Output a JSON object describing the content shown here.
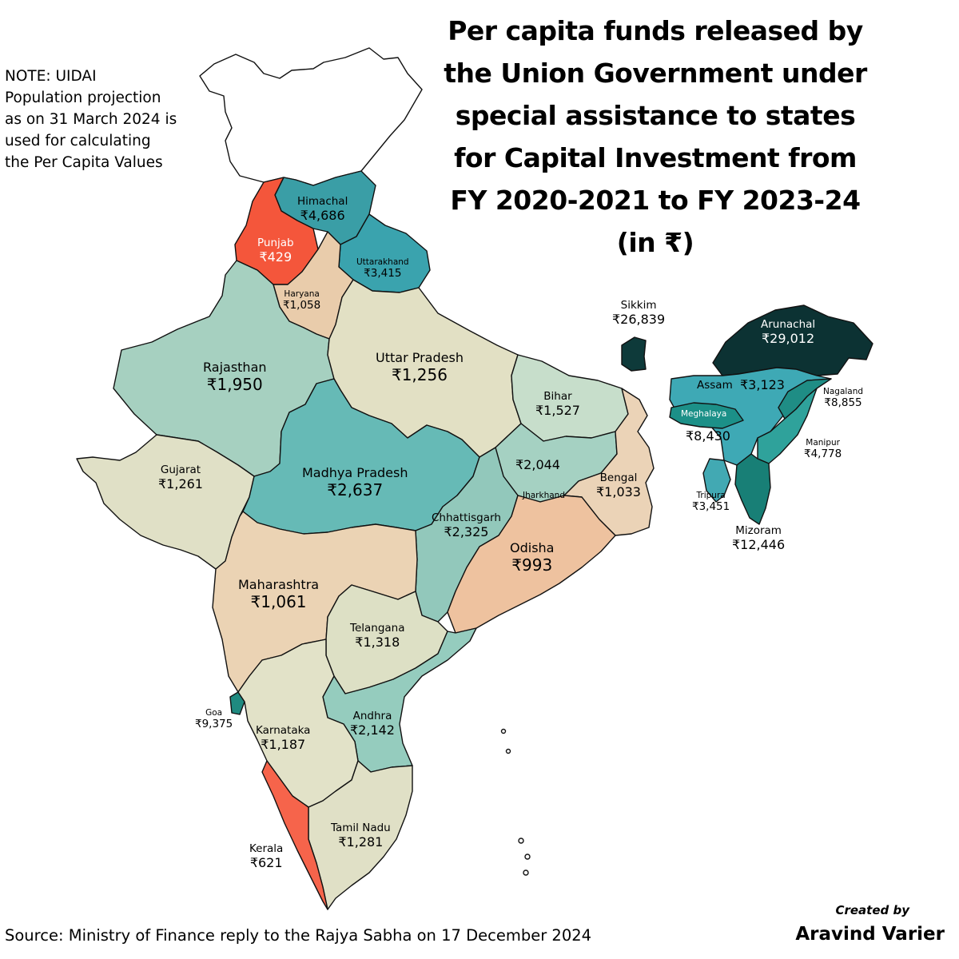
{
  "title_lines": [
    "Per capita funds released by",
    "the Union Government under",
    "special assistance to states",
    "for Capital Investment from",
    "FY 2020-2021 to FY 2023-24",
    "(in ₹)"
  ],
  "note_lines": [
    "NOTE: UIDAI",
    "Population projection",
    "as on 31 March 2024 is",
    "used for calculating",
    "the Per Capita Values"
  ],
  "source": "Source: Ministry of Finance reply to the Rajya Sabha on 17 December 2024",
  "credit": {
    "line1": "Created by",
    "line2": "Aravind Varier"
  },
  "states": {
    "himachal": {
      "name": "Himachal",
      "value": "₹4,686",
      "color": "#3a9ea6"
    },
    "punjab": {
      "name": "Punjab",
      "value": "₹429",
      "color": "#f4563b"
    },
    "uttarakhand": {
      "name": "Uttarakhand",
      "value": "₹3,415",
      "color": "#3aa3ae"
    },
    "haryana": {
      "name": "Haryana",
      "value": "₹1,058",
      "color": "#e9ccab"
    },
    "rajasthan": {
      "name": "Rajasthan",
      "value": "₹1,950",
      "color": "#a6d0c0"
    },
    "uttar_pradesh": {
      "name": "Uttar Pradesh",
      "value": "₹1,256",
      "color": "#e2e0c4"
    },
    "bihar": {
      "name": "Bihar",
      "value": "₹1,527",
      "color": "#c7decb"
    },
    "gujarat": {
      "name": "Gujarat",
      "value": "₹1,261",
      "color": "#e0e0c6"
    },
    "madhya_pradesh": {
      "name": "Madhya Pradesh",
      "value": "₹2,637",
      "color": "#66bab6"
    },
    "jharkhand": {
      "name": "Jharkhand",
      "value": "₹2,044",
      "color": "#a5d1c2"
    },
    "bengal": {
      "name": "Bengal",
      "value": "₹1,033",
      "color": "#ebd3b7"
    },
    "chhattisgarh": {
      "name": "Chhattisgarh",
      "value": "₹2,325",
      "color": "#92c8bb"
    },
    "odisha": {
      "name": "Odisha",
      "value": "₹993",
      "color": "#eec29f"
    },
    "maharashtra": {
      "name": "Maharashtra",
      "value": "₹1,061",
      "color": "#ebd3b4"
    },
    "telangana": {
      "name": "Telangana",
      "value": "₹1,318",
      "color": "#dde0c5"
    },
    "andhra": {
      "name": "Andhra",
      "value": "₹2,142",
      "color": "#95ccbe"
    },
    "goa": {
      "name": "Goa",
      "value": "₹9,375",
      "color": "#1f8a80"
    },
    "karnataka": {
      "name": "Karnataka",
      "value": "₹1,187",
      "color": "#e2e2c8"
    },
    "tamil_nadu": {
      "name": "Tamil Nadu",
      "value": "₹1,281",
      "color": "#e0e0c6"
    },
    "kerala": {
      "name": "Kerala",
      "value": "₹621",
      "color": "#f6644b"
    },
    "sikkim": {
      "name": "Sikkim",
      "value": "₹26,839",
      "color": "#0e3a3a"
    },
    "arunachal": {
      "name": "Arunachal",
      "value": "₹29,012",
      "color": "#0c3233"
    },
    "assam": {
      "name": "Assam",
      "value": "₹3,123",
      "color": "#3ea9b5"
    },
    "nagaland": {
      "name": "Nagaland",
      "value": "₹8,855",
      "color": "#1f8d85"
    },
    "meghalaya": {
      "name": "Meghalaya",
      "value": "₹8,430",
      "color": "#1c9088"
    },
    "manipur": {
      "name": "Manipur",
      "value": "₹4,778",
      "color": "#2fa29b"
    },
    "tripura": {
      "name": "Tripura",
      "value": "₹3,451",
      "color": "#42a9b3"
    },
    "mizoram": {
      "name": "Mizoram",
      "value": "₹12,446",
      "color": "#187f76"
    }
  },
  "no_data_color": "#ffffff"
}
